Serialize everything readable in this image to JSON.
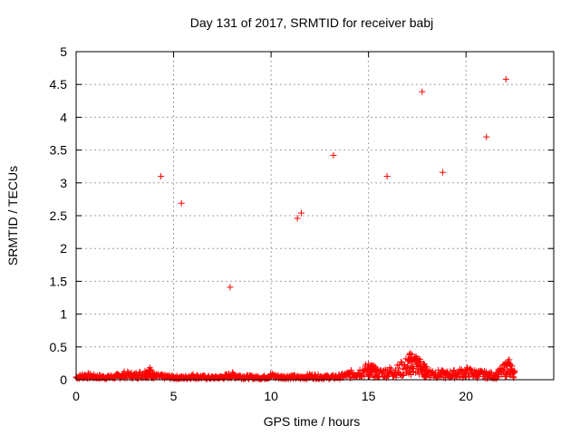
{
  "chart_data": {
    "type": "scatter",
    "title": "Day 131 of 2017, SRMTID for receiver babj",
    "xlabel": "GPS time / hours",
    "ylabel": "SRMTID / TECUs",
    "xlim": [
      0,
      24.5
    ],
    "ylim": [
      0,
      5
    ],
    "xticks": [
      0,
      5,
      10,
      15,
      20
    ],
    "xtick_labels": [
      "0",
      "5",
      "10",
      "15",
      "20"
    ],
    "yticks": [
      0,
      0.5,
      1,
      1.5,
      2,
      2.5,
      3,
      3.5,
      4,
      4.5,
      5
    ],
    "ytick_labels": [
      "0",
      "0.5",
      "1",
      "1.5",
      "2",
      "2.5",
      "3",
      "3.5",
      "4",
      "4.5",
      "5"
    ],
    "grid": true,
    "marker": "+",
    "series": [
      {
        "name": "SRMTID",
        "color": "#ff0000",
        "outliers": {
          "x": [
            4.35,
            5.4,
            7.9,
            11.35,
            11.55,
            13.2,
            15.95,
            17.75,
            18.8,
            21.05,
            22.05
          ],
          "y": [
            3.1,
            2.69,
            1.41,
            2.46,
            2.54,
            3.42,
            3.1,
            4.39,
            3.16,
            3.7,
            4.58
          ]
        },
        "baseline": {
          "x": [
            0.0,
            0.5,
            1.0,
            1.5,
            2.0,
            2.5,
            3.0,
            3.5,
            3.8,
            4.0,
            4.5,
            5.0,
            5.5,
            6.0,
            6.5,
            7.0,
            7.5,
            8.0,
            8.5,
            9.0,
            9.5,
            10.0,
            10.5,
            11.0,
            11.5,
            12.0,
            12.5,
            13.0,
            13.5,
            14.0,
            14.5,
            15.0,
            15.2,
            15.5,
            16.0,
            16.5,
            17.0,
            17.2,
            17.5,
            17.8,
            18.0,
            18.5,
            19.0,
            19.5,
            20.0,
            20.5,
            21.0,
            21.5,
            22.0,
            22.2,
            22.5
          ],
          "y": [
            0.05,
            0.08,
            0.06,
            0.05,
            0.06,
            0.1,
            0.08,
            0.12,
            0.15,
            0.07,
            0.06,
            0.05,
            0.04,
            0.07,
            0.05,
            0.04,
            0.05,
            0.09,
            0.06,
            0.05,
            0.04,
            0.08,
            0.05,
            0.06,
            0.04,
            0.07,
            0.06,
            0.05,
            0.06,
            0.1,
            0.15,
            0.2,
            0.18,
            0.12,
            0.15,
            0.18,
            0.28,
            0.34,
            0.3,
            0.2,
            0.15,
            0.12,
            0.1,
            0.12,
            0.15,
            0.12,
            0.1,
            0.08,
            0.2,
            0.25,
            0.12
          ]
        }
      }
    ]
  }
}
